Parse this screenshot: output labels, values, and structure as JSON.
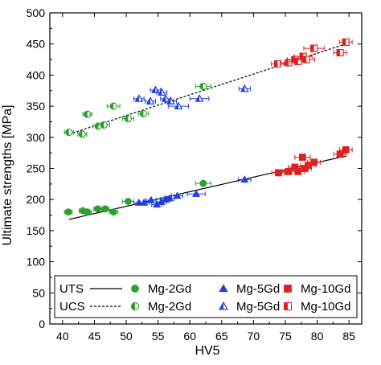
{
  "chart_data": {
    "type": "scatter",
    "xlabel": "HV5",
    "ylabel": "Ultimate strengths [MPa]",
    "xlim": [
      38,
      87
    ],
    "ylim": [
      0,
      500
    ],
    "xticks": [
      40,
      45,
      50,
      55,
      60,
      65,
      70,
      75,
      80,
      85
    ],
    "yticks": [
      0,
      50,
      100,
      150,
      200,
      250,
      300,
      350,
      400,
      450,
      500
    ],
    "x_tick_labels": [
      "40",
      "45",
      "50",
      "55",
      "60",
      "65",
      "70",
      "75",
      "80",
      "85"
    ],
    "y_tick_labels": [
      "0",
      "50",
      "100",
      "150",
      "200",
      "250",
      "300",
      "350",
      "400",
      "450",
      "500"
    ],
    "grid": false,
    "legend_position": "bottom",
    "legend": {
      "rows": [
        {
          "label": "UTS",
          "line_style": "solid",
          "entries": [
            "Mg-2Gd",
            "Mg-5Gd",
            "Mg-10Gd"
          ],
          "marker_fill": "filled"
        },
        {
          "label": "UCS",
          "line_style": "dashed",
          "entries": [
            "Mg-2Gd",
            "Mg-5Gd",
            "Mg-10Gd"
          ],
          "marker_fill": "half"
        }
      ]
    },
    "fit_lines": [
      {
        "name": "UTS",
        "style": "solid",
        "x": [
          41,
          84.5
        ],
        "y": [
          168,
          270
        ]
      },
      {
        "name": "UCS",
        "style": "dashed",
        "x": [
          41,
          84.5
        ],
        "y": [
          305,
          450
        ]
      }
    ],
    "series": [
      {
        "name": "Mg-2Gd",
        "quantity": "UTS",
        "marker": "circle",
        "fill": "filled",
        "color": "#2ca02c",
        "points": [
          [
            40.9,
            180
          ],
          [
            43.2,
            182
          ],
          [
            43.9,
            180
          ],
          [
            45.5,
            185
          ],
          [
            46.7,
            185
          ],
          [
            48,
            180
          ],
          [
            50.3,
            197
          ],
          [
            62.1,
            226
          ]
        ],
        "xerr": [
          0.6,
          0.6,
          0.6,
          0.6,
          0.6,
          0.7,
          0.9,
          1.2
        ]
      },
      {
        "name": "Mg-5Gd",
        "quantity": "UTS",
        "marker": "triangle",
        "fill": "filled",
        "color": "#1f3fe0",
        "points": [
          [
            52,
            195
          ],
          [
            52.8,
            195
          ],
          [
            53.9,
            199
          ],
          [
            54.8,
            192
          ],
          [
            55.5,
            196
          ],
          [
            56.2,
            200
          ],
          [
            56.8,
            202
          ],
          [
            58,
            206
          ],
          [
            61,
            209
          ],
          [
            68.6,
            232
          ]
        ],
        "xerr": [
          0.8,
          0.8,
          0.8,
          0.8,
          0.8,
          0.8,
          0.8,
          0.9,
          1.4,
          1
        ]
      },
      {
        "name": "Mg-10Gd",
        "quantity": "UTS",
        "marker": "square",
        "fill": "filled",
        "color": "#e02020",
        "points": [
          [
            73.9,
            243
          ],
          [
            75.5,
            245
          ],
          [
            76.5,
            252
          ],
          [
            77,
            245
          ],
          [
            77.7,
            268
          ],
          [
            78.1,
            250
          ],
          [
            78.6,
            255
          ],
          [
            79.5,
            260
          ],
          [
            83.6,
            273
          ],
          [
            84.5,
            280
          ]
        ],
        "xerr": [
          1,
          1,
          1,
          1,
          1.2,
          1,
          1.2,
          1,
          1,
          1
        ]
      },
      {
        "name": "Mg-2Gd",
        "quantity": "UCS",
        "marker": "circle",
        "fill": "half",
        "color": "#2ca02c",
        "points": [
          [
            41,
            308
          ],
          [
            43.1,
            305
          ],
          [
            43.9,
            337
          ],
          [
            45.6,
            318
          ],
          [
            46.5,
            320
          ],
          [
            48,
            350
          ],
          [
            50.3,
            330
          ],
          [
            52.7,
            338
          ],
          [
            62.1,
            382
          ]
        ],
        "xerr": [
          0.7,
          0.7,
          0.7,
          0.8,
          0.9,
          1,
          0.9,
          0.8,
          1.2
        ]
      },
      {
        "name": "Mg-5Gd",
        "quantity": "UCS",
        "marker": "triangle",
        "fill": "half",
        "color": "#1f3fe0",
        "points": [
          [
            52,
            362
          ],
          [
            53.8,
            358
          ],
          [
            54.6,
            376
          ],
          [
            55.6,
            372
          ],
          [
            56.2,
            362
          ],
          [
            57,
            358
          ],
          [
            58.2,
            350
          ],
          [
            61.5,
            362
          ],
          [
            68.6,
            378
          ]
        ],
        "xerr": [
          0.8,
          0.8,
          0.8,
          0.8,
          0.8,
          0.9,
          1.6,
          1.5,
          0.9
        ]
      },
      {
        "name": "Mg-10Gd",
        "quantity": "UCS",
        "marker": "square",
        "fill": "half",
        "color": "#e02020",
        "points": [
          [
            73.8,
            418
          ],
          [
            75.5,
            420
          ],
          [
            76.5,
            425
          ],
          [
            77,
            422
          ],
          [
            77.8,
            430
          ],
          [
            78.3,
            425
          ],
          [
            79.5,
            443
          ],
          [
            83.6,
            436
          ],
          [
            84.5,
            453
          ]
        ],
        "xerr": [
          1,
          1.3,
          1.2,
          1.3,
          1.4,
          1.3,
          1.6,
          1,
          1
        ]
      }
    ]
  }
}
